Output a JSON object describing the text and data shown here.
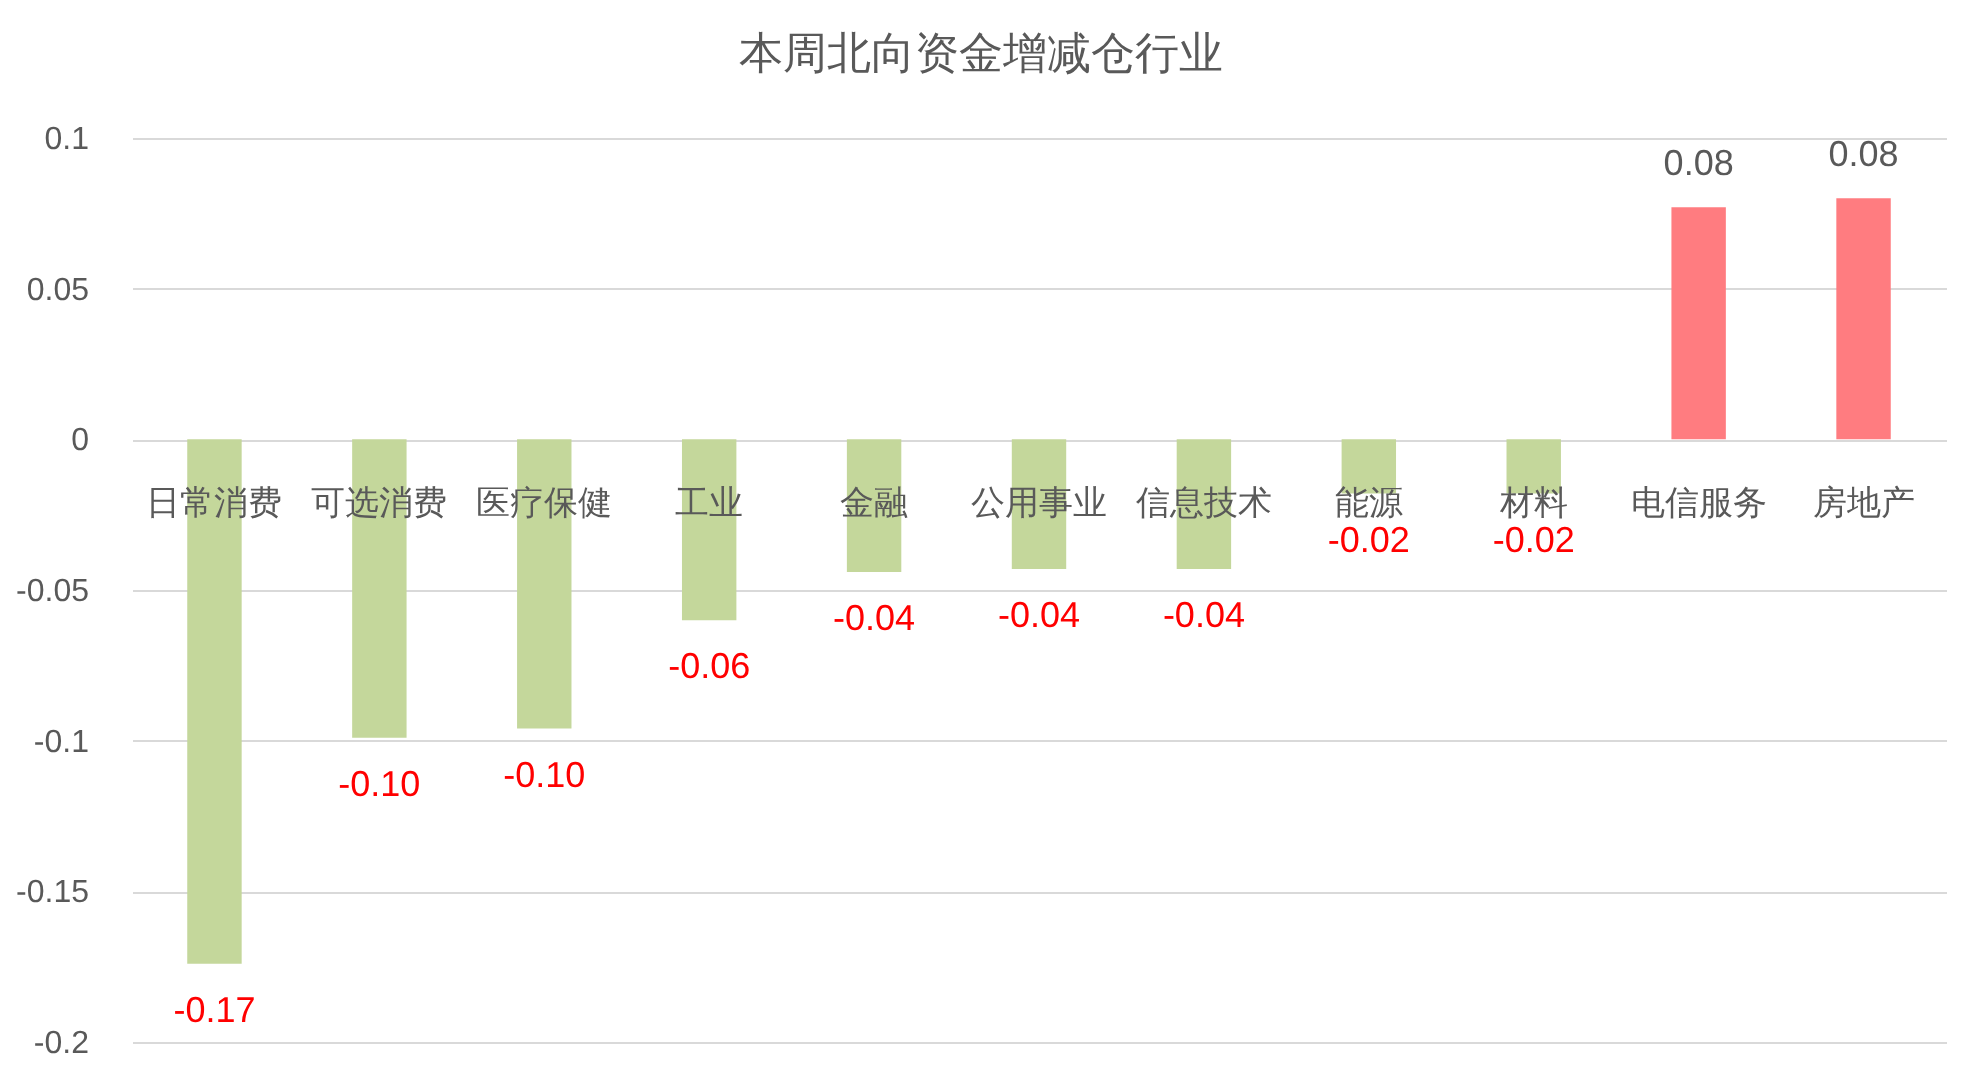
{
  "chart_data": {
    "type": "bar",
    "title": "本周北向资金增减仓行业",
    "categories": [
      "日常消费",
      "可选消费",
      "医疗保健",
      "工业",
      "金融",
      "公用事业",
      "信息技术",
      "能源",
      "材料",
      "电信服务",
      "房地产"
    ],
    "values": [
      -0.174,
      -0.099,
      -0.096,
      -0.06,
      -0.044,
      -0.043,
      -0.043,
      -0.018,
      -0.018,
      0.077,
      0.08
    ],
    "colors": [
      "#c4d79b",
      "#c4d79b",
      "#c4d79b",
      "#c4d79b",
      "#c4d79b",
      "#c4d79b",
      "#c4d79b",
      "#c4d79b",
      "#c4d79b",
      "#ff7c80",
      "#ff7c80"
    ],
    "value_labels": [
      "-0.17",
      "-0.10",
      "-0.10",
      "-0.06",
      "-0.04",
      "-0.04",
      "-0.04",
      "-0.02",
      "-0.02",
      "0.08",
      "0.08"
    ],
    "ylim": [
      -0.2,
      0.1
    ],
    "yticks": [
      -0.2,
      -0.15,
      -0.1,
      -0.05,
      0,
      0.05,
      0.1
    ],
    "grid": "y"
  }
}
